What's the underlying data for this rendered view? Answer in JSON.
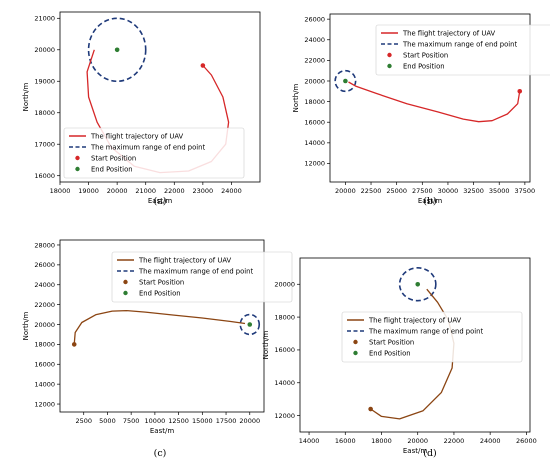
{
  "chart_data": [
    {
      "id": "a",
      "type": "line",
      "caption": "(a)",
      "xlabel": "East/m",
      "ylabel": "North/m",
      "xlim": [
        18000,
        25000
      ],
      "ylim": [
        15800,
        21200
      ],
      "xticks": [
        18000,
        19000,
        20000,
        21000,
        22000,
        23000,
        24000
      ],
      "yticks": [
        16000,
        17000,
        18000,
        19000,
        20000,
        21000
      ],
      "xtick_labels": [
        "18000",
        "19000",
        "20000",
        "21000",
        "22000",
        "23000",
        "24000"
      ],
      "ytick_labels": [
        "16000",
        "17000",
        "18000",
        "19000",
        "20000",
        "21000"
      ],
      "grid": false,
      "legend_position": "lower-left",
      "trajectory_color": "#d62728",
      "start_color": "#d62728",
      "end_color": "#2e7d32",
      "circle_color": "#1f3a7a",
      "circle_center": [
        20000,
        20000
      ],
      "circle_radius": 1000,
      "start": [
        23000,
        19500
      ],
      "end": [
        20000,
        20000
      ],
      "trajectory": [
        [
          23000,
          19500
        ],
        [
          23300,
          19200
        ],
        [
          23700,
          18500
        ],
        [
          23900,
          17700
        ],
        [
          23800,
          17000
        ],
        [
          23300,
          16450
        ],
        [
          22500,
          16150
        ],
        [
          21500,
          16100
        ],
        [
          20600,
          16300
        ],
        [
          19800,
          16900
        ],
        [
          19300,
          17700
        ],
        [
          19000,
          18500
        ],
        [
          18950,
          19300
        ],
        [
          19200,
          20000
        ]
      ],
      "legend": [
        "The flight trajectory of UAV",
        "The maximum range of end point",
        "Start Position",
        "End Position"
      ]
    },
    {
      "id": "b",
      "type": "line",
      "caption": "(b)",
      "xlabel": "East/m",
      "ylabel": "North/m",
      "xlim": [
        18500,
        38000
      ],
      "ylim": [
        10200,
        26500
      ],
      "xticks": [
        20000,
        22500,
        25000,
        27500,
        30000,
        32500,
        35000,
        37500
      ],
      "yticks": [
        12000,
        14000,
        16000,
        18000,
        20000,
        22000,
        24000,
        26000
      ],
      "xtick_labels": [
        "20000",
        "22500",
        "25000",
        "27500",
        "30000",
        "32500",
        "35000",
        "37500"
      ],
      "ytick_labels": [
        "12000",
        "14000",
        "16000",
        "18000",
        "20000",
        "22000",
        "24000",
        "26000"
      ],
      "grid": false,
      "legend_position": "top-right",
      "trajectory_color": "#d62728",
      "start_color": "#d62728",
      "end_color": "#2e7d32",
      "circle_color": "#1f3a7a",
      "circle_center": [
        20000,
        20000
      ],
      "circle_radius": 1000,
      "start": [
        37000,
        19000
      ],
      "end": [
        20000,
        20000
      ],
      "trajectory": [
        [
          37000,
          19000
        ],
        [
          36800,
          17800
        ],
        [
          35800,
          16800
        ],
        [
          34300,
          16150
        ],
        [
          33000,
          16050
        ],
        [
          31500,
          16300
        ],
        [
          29000,
          17000
        ],
        [
          26000,
          17800
        ],
        [
          23000,
          18800
        ],
        [
          21000,
          19500
        ],
        [
          20300,
          19900
        ]
      ],
      "legend": [
        "The flight trajectory of UAV",
        "The maximum range of end point",
        "Start Position",
        "End Position"
      ]
    },
    {
      "id": "c",
      "type": "line",
      "caption": "(c)",
      "xlabel": "East/m",
      "ylabel": "North/m",
      "xlim": [
        0,
        21500
      ],
      "ylim": [
        11200,
        28500
      ],
      "xticks": [
        2500,
        5000,
        7500,
        10000,
        12500,
        15000,
        17500,
        20000
      ],
      "yticks": [
        12000,
        14000,
        16000,
        18000,
        20000,
        22000,
        24000,
        26000,
        28000
      ],
      "xtick_labels": [
        "2500",
        "5000",
        "7500",
        "10000",
        "12500",
        "15000",
        "17500",
        "20000"
      ],
      "ytick_labels": [
        "12000",
        "14000",
        "16000",
        "18000",
        "20000",
        "22000",
        "24000",
        "26000",
        "28000"
      ],
      "grid": false,
      "legend_position": "top-right",
      "trajectory_color": "#8b4513",
      "start_color": "#8b4513",
      "end_color": "#2e7d32",
      "circle_color": "#1f3a7a",
      "circle_center": [
        20000,
        20000
      ],
      "circle_radius": 1000,
      "start": [
        1500,
        18000
      ],
      "end": [
        20000,
        20000
      ],
      "trajectory": [
        [
          1500,
          18000
        ],
        [
          1600,
          19200
        ],
        [
          2300,
          20200
        ],
        [
          3800,
          21000
        ],
        [
          5500,
          21350
        ],
        [
          7000,
          21400
        ],
        [
          9000,
          21250
        ],
        [
          12000,
          20950
        ],
        [
          15000,
          20650
        ],
        [
          18000,
          20300
        ],
        [
          19500,
          20100
        ]
      ],
      "legend": [
        "The flight trajectory of UAV",
        "The maximum range of end point",
        "Start Position",
        "End Position"
      ]
    },
    {
      "id": "d",
      "type": "line",
      "caption": "(d)",
      "xlabel": "East/m",
      "ylabel": "North/m",
      "xlim": [
        13500,
        26200
      ],
      "ylim": [
        11000,
        21600
      ],
      "xticks": [
        14000,
        16000,
        18000,
        20000,
        22000,
        24000,
        26000
      ],
      "yticks": [
        12000,
        14000,
        16000,
        18000,
        20000
      ],
      "xtick_labels": [
        "14000",
        "16000",
        "18000",
        "20000",
        "22000",
        "24000",
        "26000"
      ],
      "ytick_labels": [
        "12000",
        "14000",
        "16000",
        "18000",
        "20000"
      ],
      "grid": false,
      "legend_position": "center-right",
      "trajectory_color": "#8b4513",
      "start_color": "#8b4513",
      "end_color": "#2e7d32",
      "circle_color": "#1f3a7a",
      "circle_center": [
        20000,
        20000
      ],
      "circle_radius": 1000,
      "start": [
        17400,
        12400
      ],
      "end": [
        20000,
        20000
      ],
      "trajectory": [
        [
          17400,
          12400
        ],
        [
          18000,
          11950
        ],
        [
          19000,
          11800
        ],
        [
          20300,
          12300
        ],
        [
          21300,
          13400
        ],
        [
          21900,
          14900
        ],
        [
          22000,
          16400
        ],
        [
          21700,
          17800
        ],
        [
          21100,
          18900
        ],
        [
          20500,
          19700
        ]
      ],
      "legend": [
        "The flight trajectory of UAV",
        "The maximum range of end point",
        "Start Position",
        "End Position"
      ]
    }
  ]
}
